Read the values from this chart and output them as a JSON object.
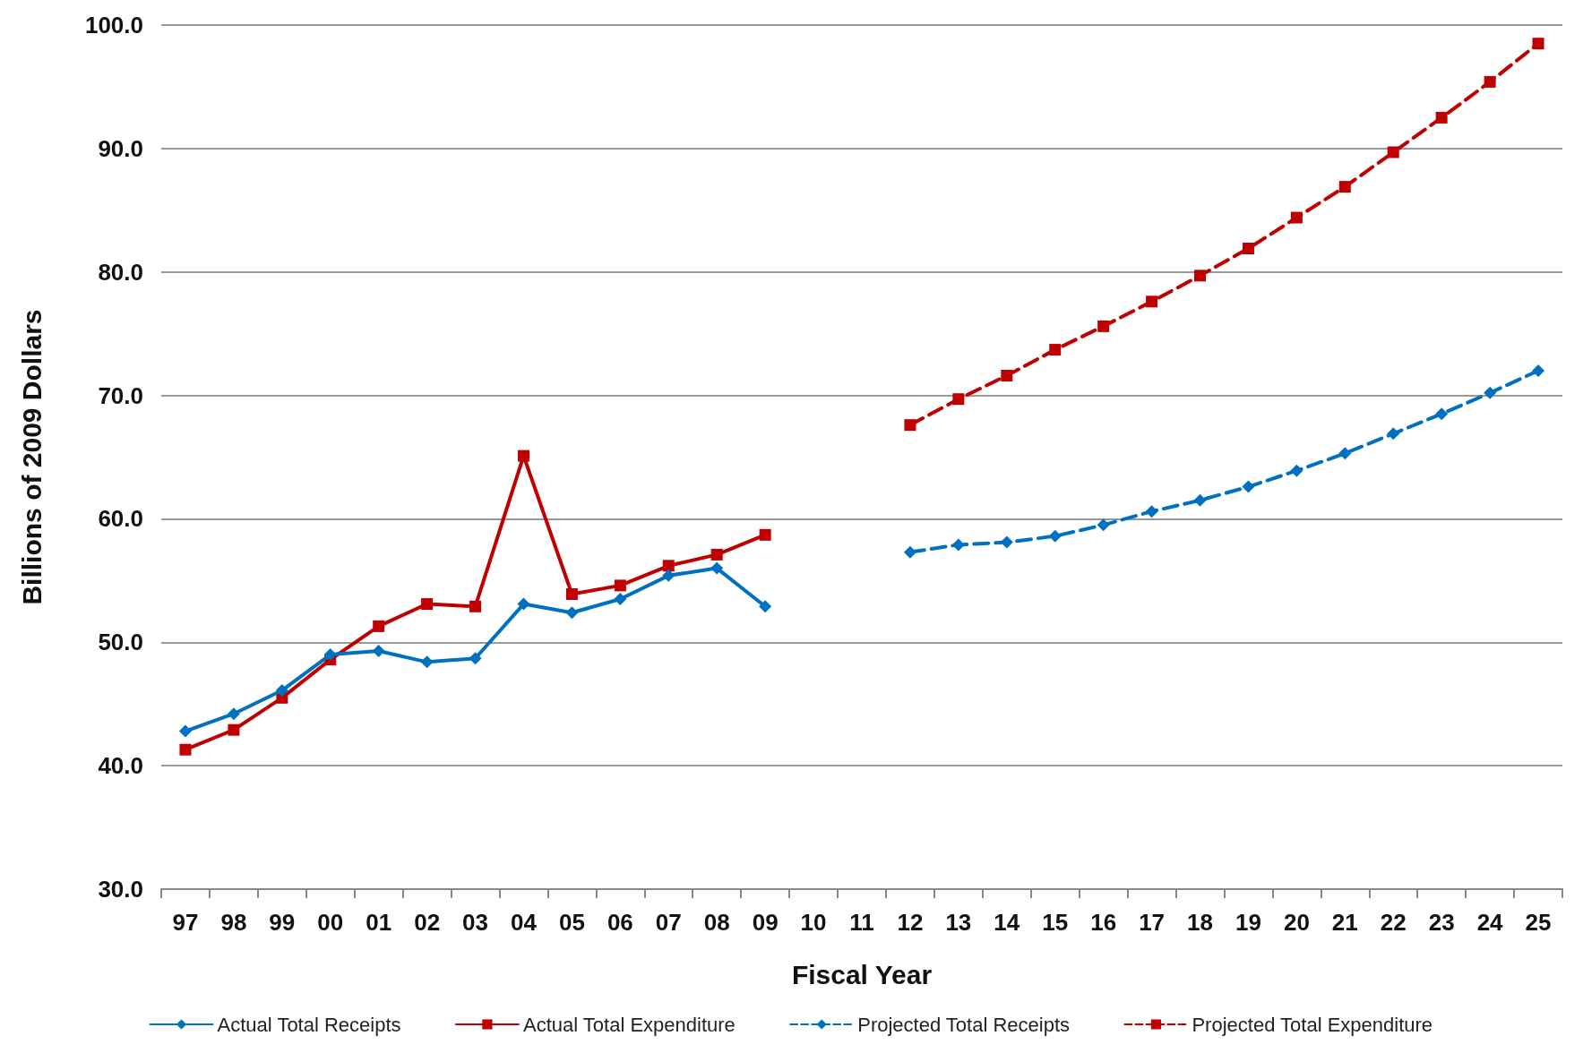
{
  "chart_data": {
    "type": "line",
    "xlabel": "Fiscal Year",
    "ylabel": "Billions of 2009 Dollars",
    "categories": [
      "97",
      "98",
      "99",
      "00",
      "01",
      "02",
      "03",
      "04",
      "05",
      "06",
      "07",
      "08",
      "09",
      "10",
      "11",
      "12",
      "13",
      "14",
      "15",
      "16",
      "17",
      "18",
      "19",
      "20",
      "21",
      "22",
      "23",
      "24",
      "25"
    ],
    "series": [
      {
        "name": "Actual Total Receipts",
        "color": "#0070c0",
        "marker": "diamond",
        "line_style": "solid",
        "values": [
          42.8,
          44.2,
          46.1,
          49.0,
          49.3,
          48.4,
          48.7,
          53.1,
          52.4,
          53.5,
          55.4,
          56.0,
          52.9,
          null,
          null,
          null,
          null,
          null,
          null,
          null,
          null,
          null,
          null,
          null,
          null,
          null,
          null,
          null,
          null
        ]
      },
      {
        "name": "Actual Total Expenditure",
        "color": "#c00000",
        "marker": "square",
        "line_style": "solid",
        "values": [
          41.3,
          42.9,
          45.5,
          48.6,
          51.3,
          53.1,
          52.9,
          65.1,
          53.9,
          54.6,
          56.2,
          57.1,
          58.7,
          null,
          null,
          null,
          null,
          null,
          null,
          null,
          null,
          null,
          null,
          null,
          null,
          null,
          null,
          null,
          null
        ]
      },
      {
        "name": "Projected Total Receipts",
        "color": "#0070c0",
        "marker": "diamond",
        "line_style": "dashed",
        "values": [
          null,
          null,
          null,
          null,
          null,
          null,
          null,
          null,
          null,
          null,
          null,
          null,
          null,
          null,
          null,
          57.3,
          57.9,
          58.1,
          58.6,
          59.5,
          60.6,
          61.5,
          62.6,
          63.9,
          65.3,
          66.9,
          68.5,
          70.2,
          72.0
        ]
      },
      {
        "name": "Projected Total Expenditure",
        "color": "#c00000",
        "marker": "square",
        "line_style": "dashed",
        "values": [
          null,
          null,
          null,
          null,
          null,
          null,
          null,
          null,
          null,
          null,
          null,
          null,
          null,
          null,
          null,
          67.6,
          69.7,
          71.6,
          73.7,
          75.6,
          77.6,
          79.7,
          81.9,
          84.4,
          86.9,
          89.7,
          92.5,
          95.4,
          98.5
        ]
      }
    ],
    "ylim": [
      30,
      100
    ],
    "yticks": [
      {
        "value": 30,
        "label": "30.0"
      },
      {
        "value": 40,
        "label": "40.0"
      },
      {
        "value": 50,
        "label": "50.0"
      },
      {
        "value": 60,
        "label": "60.0"
      },
      {
        "value": 70,
        "label": "70.0"
      },
      {
        "value": 80,
        "label": "80.0"
      },
      {
        "value": 90,
        "label": "90.0"
      },
      {
        "value": 100,
        "label": "100.0"
      }
    ],
    "grid": "y",
    "legend": "bottom"
  }
}
